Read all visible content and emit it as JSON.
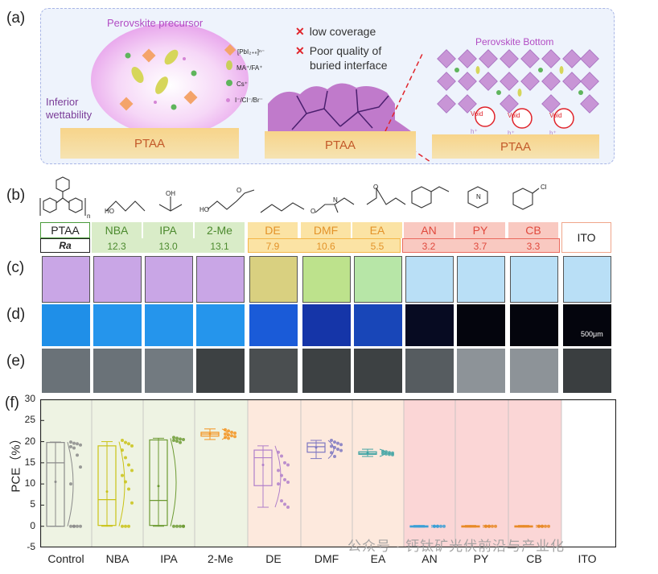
{
  "panel_labels": {
    "a": "(a)",
    "b": "(b)",
    "c": "(c)",
    "d": "(d)",
    "e": "(e)",
    "f": "(f)"
  },
  "schematic": {
    "precursor_title": "Perovskite precursor",
    "inferior": "Inferior",
    "wettability": "wettability",
    "legend": [
      {
        "text": "[PbI₂₊ₙ]ⁿ⁻",
        "color": "#f4a46a"
      },
      {
        "text": "MA⁺/FA⁺",
        "color": "#c9cf5b"
      },
      {
        "text": "Cs⁺",
        "color": "#5fb55c"
      },
      {
        "text": "I⁻/Cl⁻/Br⁻",
        "color": "#d585d6"
      }
    ],
    "issues": [
      "low coverage",
      "Poor quality of",
      "buried interface"
    ],
    "bottom_title": "Perovskite Bottom",
    "ptaa_label": "PTAA",
    "void_label": "Void",
    "hplus": "h⁺",
    "colors": {
      "accent_red": "#e0242b",
      "ptaa": "#f6cf7f",
      "purple": "#b679cc"
    }
  },
  "solvents": [
    {
      "label": "PTAA",
      "ra": "",
      "group": "none"
    },
    {
      "label": "NBA",
      "ra": "12.3",
      "group": "green"
    },
    {
      "label": "IPA",
      "ra": "13.0",
      "group": "green"
    },
    {
      "label": "2-Me",
      "ra": "13.1",
      "group": "green"
    },
    {
      "label": "DE",
      "ra": "7.9",
      "group": "orange"
    },
    {
      "label": "DMF",
      "ra": "10.6",
      "group": "orange"
    },
    {
      "label": "EA",
      "ra": "5.5",
      "group": "orange"
    },
    {
      "label": "AN",
      "ra": "3.2",
      "group": "red"
    },
    {
      "label": "PY",
      "ra": "3.7",
      "group": "red"
    },
    {
      "label": "CB",
      "ra": "3.3",
      "group": "red"
    },
    {
      "label": "ITO",
      "ra": "",
      "group": "none"
    }
  ],
  "ra_label": "Ra",
  "molecules": {
    "nba_oh": "HO",
    "ipa_oh": "OH",
    "me_o": "O",
    "me_ho": "HO",
    "dmf_o": "O",
    "dmf_n": "N",
    "ea_o": "O",
    "py_n": "N",
    "cb_cl": "Cl",
    "n_sub": "n"
  },
  "scale_bar": "500μm",
  "chart_data": {
    "type": "box",
    "ylabel": "PCE（%）",
    "ylim": [
      -5,
      30
    ],
    "yticks": [
      -5,
      0,
      5,
      10,
      15,
      20,
      25,
      30
    ],
    "categories": [
      "Control",
      "NBA",
      "IPA",
      "2-Me",
      "DE",
      "DMF",
      "EA",
      "AN",
      "PY",
      "CB",
      "ITO"
    ],
    "series": [
      {
        "name": "Control",
        "q1": 0,
        "median": 15.0,
        "q3": 19.8,
        "min": 0,
        "max": 19.9,
        "mean": 10.5,
        "points": [
          19.9,
          19.6,
          19.5,
          19.2,
          18.8,
          18.5,
          16.8,
          14.0,
          10.0,
          0,
          0,
          0,
          0,
          0
        ],
        "color": "#8a8a8a"
      },
      {
        "name": "NBA",
        "q1": 0.2,
        "median": 6.3,
        "q3": 19.0,
        "min": 0,
        "max": 20.0,
        "mean": 8.2,
        "points": [
          20.3,
          19.8,
          19.5,
          19.0,
          18.0,
          16.2,
          14.5,
          13.2,
          12.0,
          10.5,
          8.8,
          5.5,
          0,
          0,
          0
        ],
        "color": "#c9c215"
      },
      {
        "name": "IPA",
        "q1": 0.2,
        "median": 6.1,
        "q3": 20.4,
        "min": 0,
        "max": 20.8,
        "mean": 9.5,
        "points": [
          21.0,
          20.8,
          20.6,
          20.5,
          20.3,
          20.1,
          19.8,
          0,
          0,
          0,
          0,
          0
        ],
        "color": "#6c9a32"
      },
      {
        "name": "2-Me",
        "q1": 21.3,
        "median": 21.8,
        "q3": 22.2,
        "min": 20.5,
        "max": 23.0,
        "mean": 21.8,
        "points": [
          22.8,
          22.5,
          22.2,
          22.0,
          21.8,
          21.6,
          21.4,
          21.2,
          21.0,
          20.8
        ],
        "color": "#f39320"
      },
      {
        "name": "DE",
        "q1": 9.6,
        "median": 16.2,
        "q3": 18.0,
        "min": 4.5,
        "max": 19.0,
        "mean": 14.5,
        "points": [
          17.5,
          16.6,
          15.0,
          14.5,
          13.2,
          12.0,
          11.0,
          10.4,
          10.0,
          6.0,
          5.2,
          4.5
        ],
        "color": "#b07fca"
      },
      {
        "name": "DMF",
        "q1": 17.5,
        "median": 18.8,
        "q3": 19.7,
        "min": 16.0,
        "max": 20.3,
        "mean": 18.6,
        "points": [
          20.3,
          19.9,
          19.6,
          19.3,
          18.9,
          18.6,
          18.2,
          17.9,
          17.4,
          16.5
        ],
        "color": "#7e78c2"
      },
      {
        "name": "EA",
        "q1": 17.0,
        "median": 17.2,
        "q3": 17.6,
        "min": 16.5,
        "max": 18.2,
        "mean": 17.3,
        "points": [
          17.7,
          17.6,
          17.4,
          17.3,
          17.2,
          17.1,
          17.0,
          16.9
        ],
        "color": "#41a4a4"
      },
      {
        "name": "AN",
        "q1": -0.1,
        "median": 0,
        "q3": 0.1,
        "min": -0.2,
        "max": 0.2,
        "mean": 0,
        "points": [
          0,
          0,
          0,
          0,
          0,
          0
        ],
        "color": "#3b9fd6"
      },
      {
        "name": "PY",
        "q1": -0.1,
        "median": 0,
        "q3": 0.1,
        "min": -0.2,
        "max": 0.2,
        "mean": 0,
        "points": [
          0,
          0,
          0,
          0,
          0,
          0
        ],
        "color": "#e88a27"
      },
      {
        "name": "CB",
        "q1": -0.1,
        "median": 0,
        "q3": 0.1,
        "min": -0.2,
        "max": 0.2,
        "mean": 0,
        "points": [
          0,
          0,
          0,
          0,
          0,
          0
        ],
        "color": "#e88a27"
      },
      {
        "name": "ITO",
        "points": []
      }
    ]
  },
  "watermark": "公众号 · 钙钛矿光伏前沿与产业化"
}
